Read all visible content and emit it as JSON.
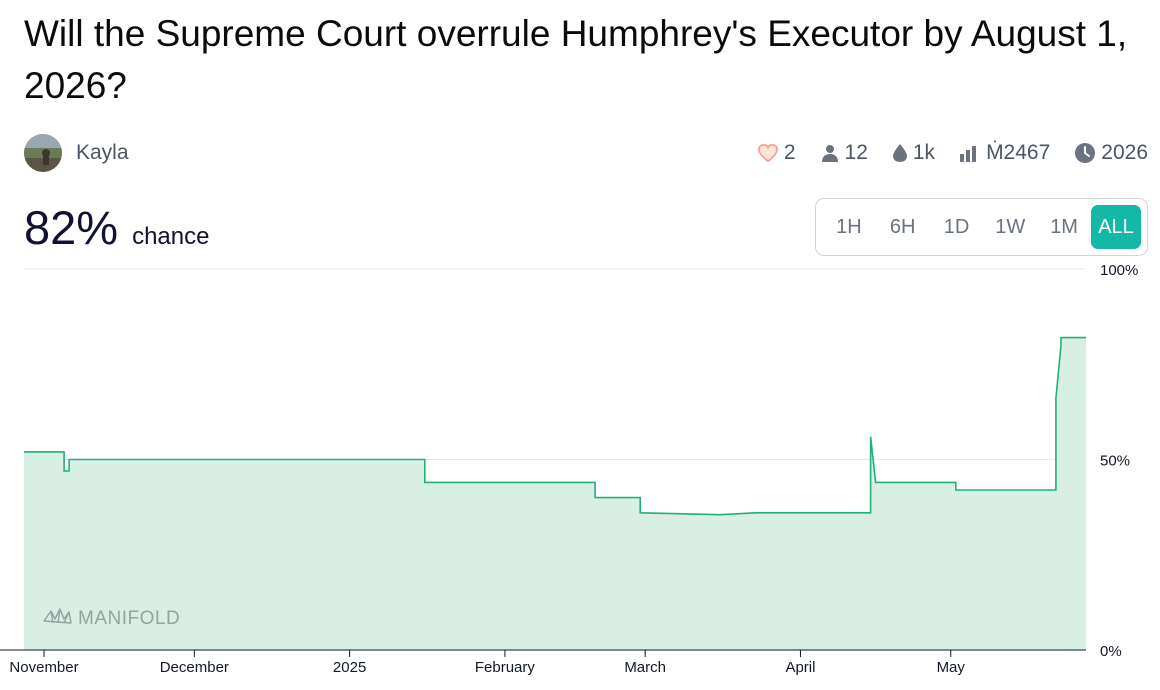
{
  "question": {
    "title": "Will the Supreme Court overrule Humphrey's Executor by August 1, 2026?"
  },
  "author": {
    "name": "Kayla",
    "avatar_icon": "avatar-photo"
  },
  "stats": [
    {
      "icon": "heart-icon",
      "value": "2"
    },
    {
      "icon": "user-icon",
      "value": "12"
    },
    {
      "icon": "droplet-icon",
      "value": "1k"
    },
    {
      "icon": "bar-chart-icon",
      "value": "Ṁ2467"
    },
    {
      "icon": "clock-icon",
      "value": "2026"
    }
  ],
  "probability": {
    "value": "82%",
    "label": "chance"
  },
  "time_range": {
    "options": [
      "1H",
      "6H",
      "1D",
      "1W",
      "1M",
      "ALL"
    ],
    "selected": "ALL"
  },
  "watermark": "MANIFOLD",
  "colors": {
    "line": "#22b07d",
    "fill": "#d8f0e4",
    "accent": "#14b8a6",
    "heart": "#f6a48f"
  },
  "chart_data": {
    "type": "area",
    "x_domain": [
      "2024-10-28",
      "2025-05-28"
    ],
    "ylim": [
      0,
      100
    ],
    "y_ticks": [
      "0%",
      "50%",
      "100%"
    ],
    "y_tick_values": [
      0,
      50,
      100
    ],
    "x_ticks": [
      {
        "label": "November",
        "date": "2024-11-01"
      },
      {
        "label": "December",
        "date": "2024-12-01"
      },
      {
        "label": "2025",
        "date": "2025-01-01"
      },
      {
        "label": "February",
        "date": "2025-02-01"
      },
      {
        "label": "March",
        "date": "2025-03-01"
      },
      {
        "label": "April",
        "date": "2025-04-01"
      },
      {
        "label": "May",
        "date": "2025-05-01"
      }
    ],
    "series": [
      {
        "points": [
          [
            "2024-10-28",
            52
          ],
          [
            "2024-11-05",
            52
          ],
          [
            "2024-11-05",
            47
          ],
          [
            "2024-11-06",
            47
          ],
          [
            "2024-11-06",
            50
          ],
          [
            "2025-01-16",
            50
          ],
          [
            "2025-01-16",
            44
          ],
          [
            "2025-02-19",
            44
          ],
          [
            "2025-02-19",
            40
          ],
          [
            "2025-02-28",
            40
          ],
          [
            "2025-02-28",
            36
          ],
          [
            "2025-03-16",
            35.5
          ],
          [
            "2025-03-23",
            36
          ],
          [
            "2025-04-15",
            36
          ],
          [
            "2025-04-15",
            56
          ],
          [
            "2025-04-16",
            44
          ],
          [
            "2025-05-02",
            44
          ],
          [
            "2025-05-02",
            42
          ],
          [
            "2025-05-22",
            42
          ],
          [
            "2025-05-22",
            66
          ],
          [
            "2025-05-23",
            80
          ],
          [
            "2025-05-23",
            82
          ],
          [
            "2025-05-28",
            82
          ]
        ]
      }
    ],
    "grid": true
  }
}
